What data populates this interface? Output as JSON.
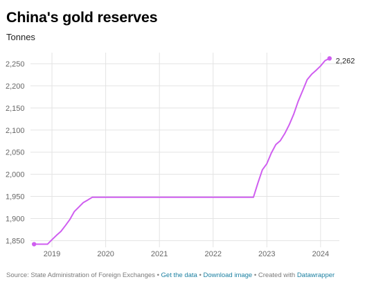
{
  "header": {
    "title": "China's gold reserves",
    "subtitle": "Tonnes"
  },
  "chart_data": {
    "type": "line",
    "title": "China's gold reserves",
    "subtitle": "Tonnes",
    "xlabel": "",
    "ylabel": "",
    "ylim": [
      1835,
      2275
    ],
    "y_ticks": [
      1850,
      1900,
      1950,
      2000,
      2050,
      2100,
      2150,
      2200,
      2250
    ],
    "x_ticks": [
      "2019",
      "2020",
      "2021",
      "2022",
      "2023",
      "2024"
    ],
    "x_range": [
      2018.6,
      2024.35
    ],
    "grid": true,
    "line_color": "#cf5ef0",
    "series": [
      {
        "x": [
          2018.667,
          2018.75,
          2018.833,
          2018.917,
          2019.0,
          2019.083,
          2019.167,
          2019.25,
          2019.333,
          2019.417,
          2019.5,
          2019.583,
          2019.667,
          2019.75,
          2019.833,
          2019.917,
          2020.0,
          2020.5,
          2021.0,
          2021.5,
          2022.0,
          2022.5,
          2022.75,
          2022.833,
          2022.917,
          2023.0,
          2023.083,
          2023.167,
          2023.25,
          2023.333,
          2023.417,
          2023.5,
          2023.583,
          2023.667,
          2023.75,
          2023.833,
          2023.917,
          2024.0,
          2024.083,
          2024.167
        ],
        "y": [
          1842,
          1842,
          1842,
          1842,
          1852,
          1862,
          1871,
          1884,
          1898,
          1916,
          1926,
          1936,
          1942,
          1948,
          1948,
          1948,
          1948,
          1948,
          1948,
          1948,
          1948,
          1948,
          1948,
          1980,
          2010,
          2024,
          2048,
          2067,
          2076,
          2092,
          2112,
          2136,
          2165,
          2189,
          2214,
          2226,
          2235,
          2245,
          2257,
          2262
        ]
      }
    ],
    "end_label": "2,262"
  },
  "footer": {
    "source": "Source: State Administration of Foreign Exchanges",
    "get_data": "Get the data",
    "download": "Download image",
    "created": "Created with",
    "tool": "Datawrapper",
    "sep": "•"
  }
}
